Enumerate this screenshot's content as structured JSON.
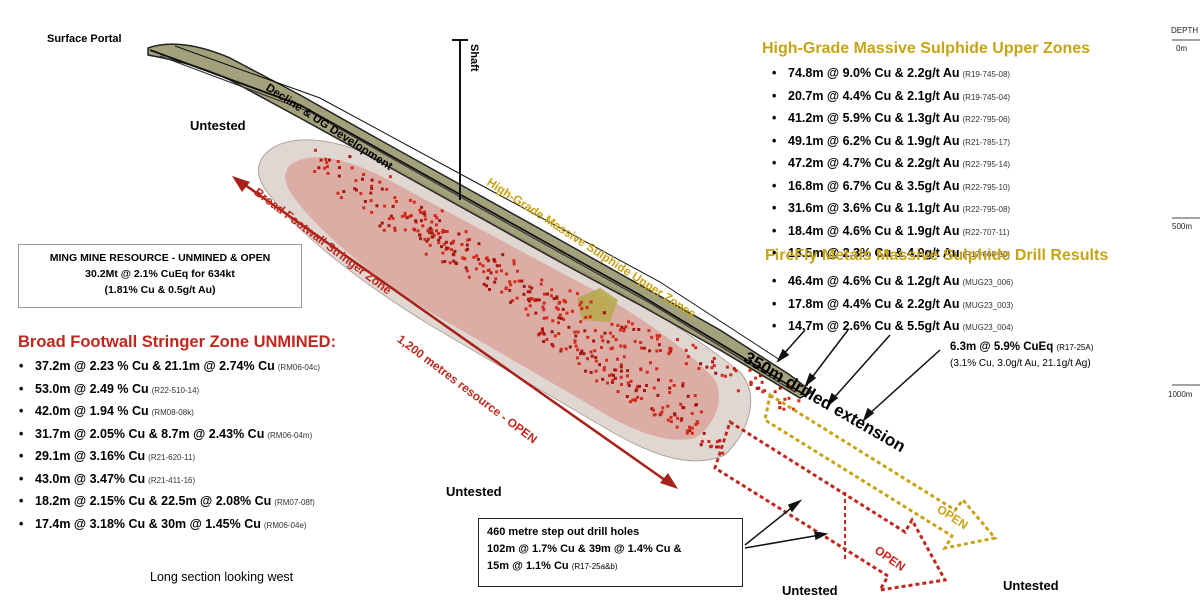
{
  "labels": {
    "surface_portal": "Surface Portal",
    "decline": "Decline & UG Development",
    "shaft": "Shaft",
    "untested_1": "Untested",
    "untested_2": "Untested",
    "untested_3": "Untested",
    "untested_4": "Untested",
    "hg_zone_diag": "High-Grade Massive Sulphide Upper Zones",
    "broad_zone_diag": "Broad Footwall Stringer Zone",
    "resource_diag": "1,200 metres resource - OPEN",
    "extension": "350m drilled extension",
    "open_gold": "OPEN",
    "open_red": "OPEN",
    "caption": "Long section looking west"
  },
  "depth_scale": {
    "title": "DEPTH",
    "ticks": [
      "0m",
      "500m",
      "1000m"
    ]
  },
  "colors": {
    "gold": "#c8a415",
    "red": "#c0281e",
    "dark_red": "#a8201a",
    "workings": "#2a2a2a",
    "workings_fill": "#8c8a5a"
  },
  "high_grade": {
    "title": "High-Grade Massive Sulphide Upper Zones",
    "items": [
      {
        "text": "74.8m @ 9.0% Cu & 2.2g/t Au",
        "code": "(R19-745-08)"
      },
      {
        "text": "20.7m @ 4.4% Cu & 2.1g/t Au",
        "code": "(R19-745-04)"
      },
      {
        "text": "41.2m @ 5.9% Cu & 1.3g/t Au",
        "code": "(R22-795-06)"
      },
      {
        "text": "49.1m @ 6.2% Cu & 1.9g/t Au",
        "code": "(R21-785-17)"
      },
      {
        "text": "47.2m @ 4.7% Cu & 2.2g/t Au",
        "code": "(R22-795-14)"
      },
      {
        "text": "16.8m @ 6.7% Cu & 3.5g/t Au",
        "code": "(R22-795-10)"
      },
      {
        "text": "31.6m @ 3.6% Cu & 1.1g/t Au",
        "code": "(R22-795-08)"
      },
      {
        "text": "18.4m @ 4.6% Cu & 1.9g/t Au",
        "code": "(R22-707-11)"
      },
      {
        "text": "13.5m @ 2.3% Cu & 4.9g/t Au",
        "code": "(R17-660-30)"
      }
    ]
  },
  "firefly": {
    "title": "FireFly Metals Massive Sulphide Drill Results",
    "items": [
      {
        "text": "46.4m @ 4.6% Cu & 1.2g/t Au",
        "code": "(MUG23_006)"
      },
      {
        "text": "17.8m @ 4.4% Cu & 2.2g/t Au",
        "code": "(MUG23_003)"
      },
      {
        "text": "14.7m @ 2.6% Cu & 5.5g/t Au",
        "code": "(MUG23_004)"
      }
    ]
  },
  "cueq_note": {
    "line1": "6.3m @ 5.9% CuEq",
    "code": "(R17-25A)",
    "line2": "(3.1% Cu, 3.0g/t Au, 21.1g/t Ag)"
  },
  "resource_box": {
    "line1": "MING MINE RESOURCE - UNMINED & OPEN",
    "line2": "30.2Mt @ 2.1% CuEq for 634kt",
    "line3": "(1.81% Cu & 0.5g/t Au)"
  },
  "broad": {
    "title": "Broad Footwall Stringer Zone UNMINED:",
    "items": [
      {
        "text": "37.2m @ 2.23 % Cu & 21.1m @ 2.74% Cu",
        "code": "(RM06-04c)"
      },
      {
        "text": "53.0m @ 2.49 % Cu",
        "code": "(R22-510-14)"
      },
      {
        "text": "42.0m @ 1.94 % Cu",
        "code": "(RM08-08k)"
      },
      {
        "text": "31.7m @ 2.05% Cu & 8.7m @ 2.43% Cu",
        "code": "(RM06-04m)"
      },
      {
        "text": "29.1m @ 3.16% Cu",
        "code": "(R21-620-11)"
      },
      {
        "text": "43.0m @ 3.47% Cu",
        "code": "(R21-411-16)"
      },
      {
        "text": "18.2m @ 2.15% Cu & 22.5m @ 2.08% Cu",
        "code": "(RM07-08f)"
      },
      {
        "text": "17.4m @ 3.18% Cu & 30m @ 1.45% Cu",
        "code": "(RM06-04e)"
      }
    ]
  },
  "stepout_box": {
    "line1": "460 metre step out drill holes",
    "line2": "102m @ 1.7% Cu & 39m @ 1.4% Cu &",
    "line3": "15m @ 1.1% Cu",
    "code": "(R17-25a&b)"
  }
}
